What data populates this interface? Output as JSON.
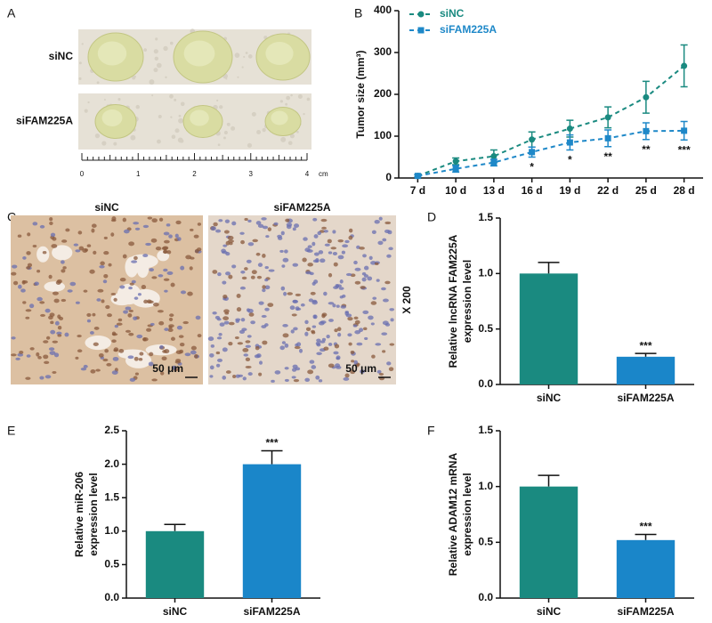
{
  "panel_labels": [
    "A",
    "B",
    "C",
    "D",
    "E",
    "F"
  ],
  "photo_a": {
    "rows": [
      "siNC",
      "siFAM225A"
    ],
    "ruler_labels": [
      "0",
      "1",
      "2",
      "3",
      "4"
    ],
    "ruler_unit": "cm"
  },
  "photo_c": {
    "columns": [
      "siNC",
      "siFAM225A"
    ],
    "scale_bar": "50 μm",
    "magnification": "X 200"
  },
  "chart_data": [
    {
      "type": "line",
      "ylabel": "Tumor size (mm³)",
      "categories": [
        "7 d",
        "10 d",
        "13 d",
        "16 d",
        "19 d",
        "22 d",
        "25 d",
        "28 d"
      ],
      "series": [
        {
          "name": "siNC",
          "color": "#1a8a80",
          "marker": "circle",
          "values": [
            5,
            40,
            52,
            92,
            118,
            145,
            193,
            268
          ],
          "errors": [
            3,
            8,
            15,
            18,
            20,
            25,
            38,
            50
          ]
        },
        {
          "name": "siFAM225A",
          "color": "#1e88c8",
          "marker": "square",
          "values": [
            5,
            22,
            37,
            62,
            85,
            95,
            112,
            113
          ],
          "errors": [
            3,
            8,
            8,
            12,
            18,
            20,
            20,
            22
          ]
        }
      ],
      "significance": [
        null,
        null,
        null,
        "*",
        "*",
        "**",
        "**",
        "***"
      ],
      "ylim": [
        0,
        400
      ],
      "yticks": [
        0,
        100,
        200,
        300,
        400
      ],
      "legend": "upper left"
    },
    {
      "type": "bar",
      "ylabel": [
        "Relative lncRNA FAM225A",
        "expression level"
      ],
      "categories": [
        "siNC",
        "siFAM225A"
      ],
      "values": [
        1.0,
        0.25
      ],
      "errors": [
        0.1,
        0.03
      ],
      "colors": [
        "#1a8a80",
        "#1a86c9"
      ],
      "significance": [
        null,
        "***"
      ],
      "ylim": [
        0,
        1.5
      ],
      "yticks": [
        {
          "value": 0,
          "label": "0.0"
        },
        {
          "value": 0.5,
          "label": "0.5"
        },
        {
          "value": 1,
          "label": "1.0"
        },
        {
          "value": 1.5,
          "label": "1.5"
        }
      ]
    },
    {
      "type": "bar",
      "ylabel": [
        "Relative miR-206",
        "expression level"
      ],
      "categories": [
        "siNC",
        "siFAM225A"
      ],
      "values": [
        1.0,
        2.0
      ],
      "errors": [
        0.1,
        0.2
      ],
      "colors": [
        "#1a8a80",
        "#1a86c9"
      ],
      "significance": [
        null,
        "***"
      ],
      "ylim": [
        0,
        2.5
      ],
      "yticks": [
        {
          "value": 0,
          "label": "0.0"
        },
        {
          "value": 0.5,
          "label": "0.5"
        },
        {
          "value": 1,
          "label": "1.0"
        },
        {
          "value": 1.5,
          "label": "1.5"
        },
        {
          "value": 2,
          "label": "2.0"
        },
        {
          "value": 2.5,
          "label": "2.5"
        }
      ]
    },
    {
      "type": "bar",
      "ylabel": [
        "Relative ADAM12 mRNA",
        "expression level"
      ],
      "categories": [
        "siNC",
        "siFAM225A"
      ],
      "values": [
        1.0,
        0.52
      ],
      "errors": [
        0.1,
        0.05
      ],
      "colors": [
        "#1a8a80",
        "#1a86c9"
      ],
      "significance": [
        null,
        "***"
      ],
      "ylim": [
        0,
        1.5
      ],
      "yticks": [
        {
          "value": 0,
          "label": "0.0"
        },
        {
          "value": 0.5,
          "label": "0.5"
        },
        {
          "value": 1,
          "label": "1.0"
        },
        {
          "value": 1.5,
          "label": "1.5"
        }
      ]
    }
  ]
}
